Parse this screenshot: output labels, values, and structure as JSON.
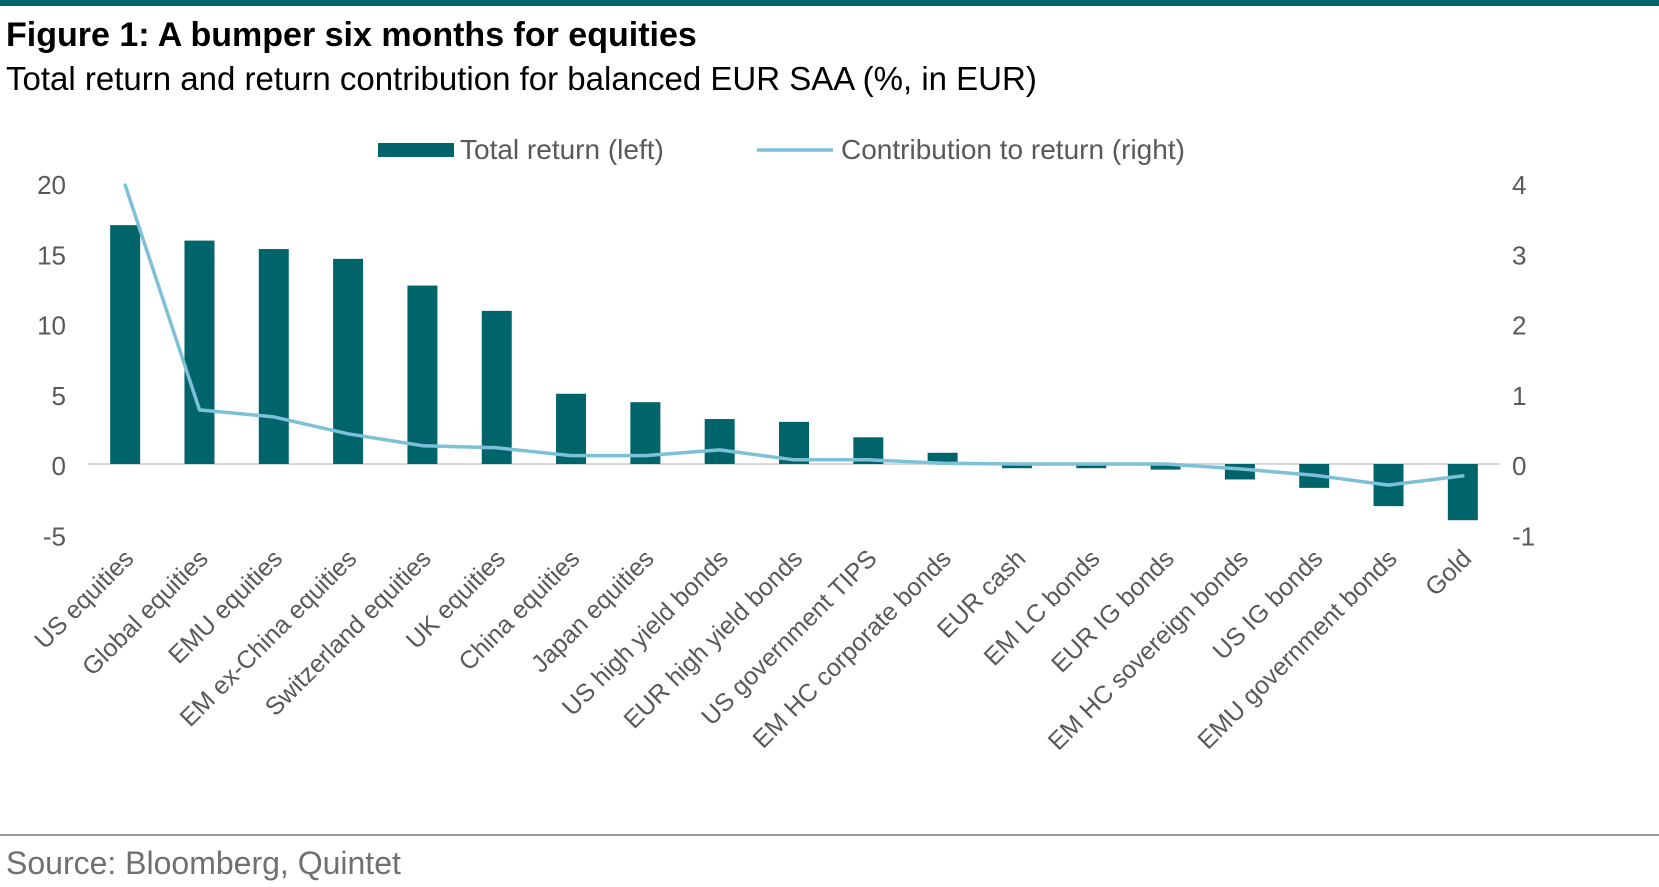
{
  "header": {
    "title": "Figure 1: A bumper six months for equities",
    "subtitle": "Total return and return contribution for balanced EUR SAA (%, in EUR)"
  },
  "footer": {
    "source": "Source: Bloomberg, Quintet"
  },
  "colors": {
    "bar": "#00656b",
    "line": "#7ec0d8",
    "axis_text": "#595959",
    "zero_line": "#d9d9d9"
  },
  "chart_data": {
    "type": "bar",
    "categories": [
      "US equities",
      "Global equities",
      "EMU equities",
      "EM ex-China equities",
      "Switzerland equities",
      "UK equities",
      "China equities",
      "Japan equities",
      "US high yield bonds",
      "EUR high yield bonds",
      "US government TIPS",
      "EM HC corporate bonds",
      "EUR cash",
      "EM LC bonds",
      "EUR IG bonds",
      "EM HC sovereign bonds",
      "US IG bonds",
      "EMU government bonds",
      "Gold"
    ],
    "series": [
      {
        "name": "Total return (left)",
        "type": "bar",
        "axis": "left",
        "values": [
          17.0,
          15.9,
          15.3,
          14.6,
          12.7,
          10.9,
          5.0,
          4.4,
          3.2,
          3.0,
          1.9,
          0.8,
          -0.3,
          -0.3,
          -0.4,
          -1.1,
          -1.7,
          -3.0,
          -4.0
        ]
      },
      {
        "name": "Contribution to return (right)",
        "type": "line",
        "axis": "right",
        "values": [
          3.97,
          0.77,
          0.67,
          0.43,
          0.26,
          0.23,
          0.12,
          0.12,
          0.2,
          0.06,
          0.06,
          0.01,
          0.0,
          0.0,
          0.0,
          -0.07,
          -0.16,
          -0.3,
          -0.17
        ]
      }
    ],
    "y_left": {
      "ylim": [
        -5,
        20
      ],
      "ticks": [
        "20",
        "15",
        "10",
        "5",
        "0",
        "-5"
      ]
    },
    "y_right": {
      "ylim": [
        -1,
        4
      ],
      "ticks": [
        "4",
        "3",
        "2",
        "1",
        "0",
        "-1"
      ]
    },
    "legend_placement": "top-center",
    "grid": false
  }
}
